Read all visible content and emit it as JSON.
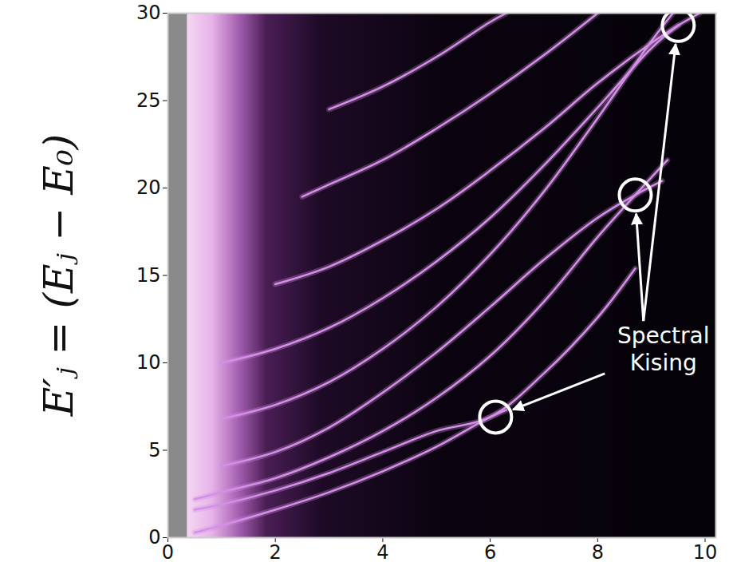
{
  "chart_data": {
    "type": "line",
    "y_label": "E′ⱼ = (Eⱼ − E₀)",
    "xlim": [
      0,
      10.2
    ],
    "ylim": [
      0,
      30
    ],
    "xticks": [
      0,
      2,
      4,
      6,
      8,
      10
    ],
    "yticks": [
      0,
      5,
      10,
      15,
      20,
      25,
      30
    ],
    "color": "#d48fe6",
    "series": [
      {
        "values": [
          [
            0.5,
            0.3
          ],
          [
            1,
            0.7
          ],
          [
            2,
            1.6
          ],
          [
            3,
            2.6
          ],
          [
            4,
            3.8
          ],
          [
            5,
            5.2
          ],
          [
            6,
            6.9
          ],
          [
            6.3,
            7.3
          ]
        ]
      },
      {
        "values": [
          [
            0.5,
            1.6
          ],
          [
            1,
            1.9
          ],
          [
            2,
            2.7
          ],
          [
            3,
            3.7
          ],
          [
            4,
            4.9
          ],
          [
            5,
            6.1
          ],
          [
            6,
            6.9
          ],
          [
            7,
            9.4
          ],
          [
            8,
            12.6
          ],
          [
            8.7,
            15.4
          ]
        ]
      },
      {
        "values": [
          [
            0.5,
            2.2
          ],
          [
            1,
            2.6
          ],
          [
            2,
            3.4
          ],
          [
            3,
            4.6
          ],
          [
            4,
            6.1
          ],
          [
            5,
            8.0
          ],
          [
            6,
            10.4
          ],
          [
            7,
            13.5
          ],
          [
            8,
            17.2
          ],
          [
            8.7,
            19.6
          ],
          [
            9.3,
            21.6
          ]
        ]
      },
      {
        "values": [
          [
            1,
            4.1
          ],
          [
            2,
            4.9
          ],
          [
            3,
            6.3
          ],
          [
            4,
            8.3
          ],
          [
            5,
            10.6
          ],
          [
            6,
            13.2
          ],
          [
            7,
            15.9
          ],
          [
            8,
            18.3
          ],
          [
            8.7,
            19.6
          ],
          [
            9.2,
            20.4
          ]
        ]
      },
      {
        "values": [
          [
            1,
            6.8
          ],
          [
            2,
            7.6
          ],
          [
            3,
            8.9
          ],
          [
            4,
            10.8
          ],
          [
            5,
            13.2
          ],
          [
            6,
            16.2
          ],
          [
            7,
            19.8
          ],
          [
            8,
            24.0
          ],
          [
            9,
            28.4
          ],
          [
            9.4,
            30
          ]
        ]
      },
      {
        "values": [
          [
            1,
            10.0
          ],
          [
            2,
            10.8
          ],
          [
            3,
            12.0
          ],
          [
            4,
            13.7
          ],
          [
            5,
            15.8
          ],
          [
            6,
            18.3
          ],
          [
            7,
            21.3
          ],
          [
            8,
            24.6
          ],
          [
            9,
            28.0
          ],
          [
            9.5,
            29.3
          ]
        ]
      },
      {
        "values": [
          [
            2,
            14.5
          ],
          [
            3,
            15.5
          ],
          [
            4,
            17.0
          ],
          [
            5,
            18.8
          ],
          [
            6,
            21.0
          ],
          [
            7,
            23.4
          ],
          [
            8,
            26.0
          ],
          [
            9,
            28.3
          ],
          [
            9.5,
            29.3
          ],
          [
            9.9,
            30
          ]
        ]
      },
      {
        "values": [
          [
            2.5,
            19.5
          ],
          [
            3,
            20.2
          ],
          [
            4,
            21.6
          ],
          [
            5,
            23.4
          ],
          [
            6,
            25.4
          ],
          [
            7,
            27.6
          ],
          [
            8,
            30
          ]
        ]
      },
      {
        "values": [
          [
            3,
            24.5
          ],
          [
            4,
            25.8
          ],
          [
            5,
            27.5
          ],
          [
            6,
            29.5
          ],
          [
            6.3,
            30
          ]
        ]
      }
    ],
    "annotations": [
      {
        "text": "Spectral Kising",
        "points": [
          [
            6.1,
            6.9
          ],
          [
            8.7,
            19.6
          ],
          [
            9.5,
            29.3
          ]
        ]
      }
    ]
  }
}
